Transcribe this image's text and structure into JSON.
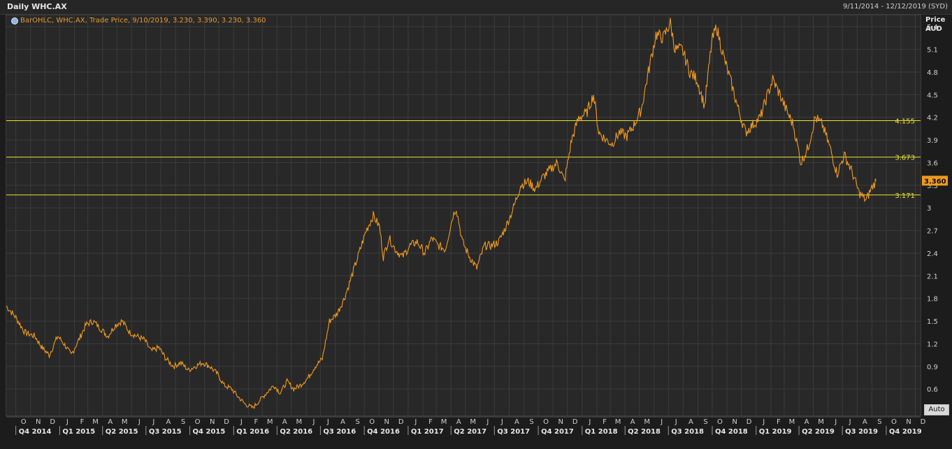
{
  "header": {
    "title": "Daily WHC.AX",
    "date_range": "9/11/2014 - 12/12/2019 (SYD)"
  },
  "legend": {
    "text": "BarOHLC, WHC.AX, Trade Price, 9/10/2019, 3.230, 3.390, 3.230, 3.360"
  },
  "axis_header": {
    "line1": "Price",
    "line2": "AUD"
  },
  "auto_button": "Auto",
  "colors": {
    "price_line": "#f29a1f",
    "level_line": "#e8e233",
    "last_price_bg": "#f29a1f",
    "grid": "#3b3b3b"
  },
  "chart_data": {
    "type": "line",
    "title": "Daily WHC.AX",
    "ylabel": "Price AUD",
    "ylim": [
      0.25,
      5.55
    ],
    "yticks": [
      0.6,
      0.9,
      1.2,
      1.5,
      1.8,
      2.1,
      2.4,
      2.7,
      3,
      3.3,
      3.6,
      3.9,
      4.2,
      4.5,
      4.8,
      5.1,
      5.4
    ],
    "ytick_labels": [
      "0.6",
      "0.9",
      "1.2",
      "1.5",
      "1.8",
      "2.1",
      "2.4",
      "2.7",
      "3",
      "3.3",
      "3.6",
      "3.9",
      "4.2",
      "4.5",
      "4.8",
      "5.1",
      "5.4"
    ],
    "month_labels": [
      "O",
      "N",
      "D",
      "J",
      "F",
      "M",
      "A",
      "M",
      "J",
      "J",
      "A",
      "S",
      "O",
      "N",
      "D",
      "J",
      "F",
      "M",
      "A",
      "M",
      "J",
      "J",
      "A",
      "S",
      "O",
      "N",
      "D",
      "J",
      "F",
      "M",
      "A",
      "M",
      "J",
      "J",
      "A",
      "S",
      "O",
      "N",
      "D",
      "J",
      "F",
      "M",
      "A",
      "M",
      "J",
      "J",
      "A",
      "S",
      "O",
      "N",
      "D",
      "J",
      "F",
      "M",
      "A",
      "M",
      "J",
      "J",
      "A",
      "S",
      "O",
      "N",
      "D"
    ],
    "quarter_labels": [
      "Q4 2014",
      "Q1 2015",
      "Q2 2015",
      "Q3 2015",
      "Q4 2015",
      "Q1 2016",
      "Q2 2016",
      "Q3 2016",
      "Q4 2016",
      "Q1 2017",
      "Q2 2017",
      "Q3 2017",
      "Q4 2017",
      "Q1 2018",
      "Q2 2018",
      "Q3 2018",
      "Q4 2018",
      "Q1 2019",
      "Q2 2019",
      "Q3 2019",
      "Q4 2019"
    ],
    "levels": [
      {
        "label": "4.155",
        "value": 4.155
      },
      {
        "label": "3.673",
        "value": 3.673
      },
      {
        "label": "3.171",
        "value": 3.171
      }
    ],
    "last_price": {
      "label": "3.360",
      "value": 3.36
    },
    "series": [
      {
        "x": [
          "2014-09-11",
          "2014-10-01",
          "2014-10-20",
          "2014-11-10",
          "2014-11-25",
          "2014-12-10",
          "2014-12-28",
          "2015-01-10",
          "2015-01-25",
          "2015-02-10",
          "2015-02-25",
          "2015-03-12",
          "2015-03-28",
          "2015-04-12",
          "2015-04-28",
          "2015-05-12",
          "2015-05-28",
          "2015-06-12",
          "2015-06-28",
          "2015-07-12",
          "2015-07-28",
          "2015-08-12",
          "2015-08-28",
          "2015-09-12",
          "2015-09-28",
          "2015-10-12",
          "2015-10-28",
          "2015-11-12",
          "2015-11-28",
          "2015-12-12",
          "2015-12-28",
          "2016-01-10",
          "2016-01-25",
          "2016-02-10",
          "2016-02-25",
          "2016-03-10",
          "2016-03-25",
          "2016-04-08",
          "2016-04-22",
          "2016-05-06",
          "2016-05-20",
          "2016-06-05",
          "2016-06-20",
          "2016-07-05",
          "2016-07-20",
          "2016-08-05",
          "2016-08-20",
          "2016-09-05",
          "2016-09-20",
          "2016-10-05",
          "2016-10-20",
          "2016-11-02",
          "2016-11-10",
          "2016-11-22",
          "2016-12-05",
          "2016-12-20",
          "2017-01-05",
          "2017-01-20",
          "2017-02-05",
          "2017-02-20",
          "2017-03-05",
          "2017-03-20",
          "2017-04-05",
          "2017-04-12",
          "2017-04-25",
          "2017-05-10",
          "2017-05-25",
          "2017-06-10",
          "2017-06-25",
          "2017-07-10",
          "2017-07-25",
          "2017-08-10",
          "2017-08-25",
          "2017-09-10",
          "2017-09-25",
          "2017-10-10",
          "2017-10-25",
          "2017-11-10",
          "2017-11-25",
          "2017-12-10",
          "2017-12-25",
          "2018-01-10",
          "2018-01-25",
          "2018-02-05",
          "2018-02-20",
          "2018-03-05",
          "2018-03-20",
          "2018-04-05",
          "2018-04-20",
          "2018-05-05",
          "2018-05-20",
          "2018-06-05",
          "2018-06-20",
          "2018-07-05",
          "2018-07-15",
          "2018-07-30",
          "2018-08-15",
          "2018-08-30",
          "2018-09-15",
          "2018-09-30",
          "2018-10-10",
          "2018-10-25",
          "2018-11-10",
          "2018-11-25",
          "2018-12-10",
          "2018-12-25",
          "2019-01-10",
          "2019-01-25",
          "2019-02-05",
          "2019-02-20",
          "2019-03-05",
          "2019-03-20",
          "2019-04-05",
          "2019-04-20",
          "2019-05-05",
          "2019-05-20",
          "2019-06-05",
          "2019-06-20",
          "2019-07-05",
          "2019-07-20",
          "2019-08-05",
          "2019-08-20",
          "2019-08-30",
          "2019-09-10"
        ],
        "y": [
          1.7,
          1.55,
          1.35,
          1.3,
          1.15,
          1.05,
          1.3,
          1.2,
          1.05,
          1.25,
          1.45,
          1.5,
          1.4,
          1.3,
          1.45,
          1.5,
          1.35,
          1.3,
          1.25,
          1.1,
          1.15,
          1.0,
          0.9,
          0.95,
          0.85,
          0.9,
          0.95,
          0.9,
          0.8,
          0.65,
          0.6,
          0.5,
          0.4,
          0.35,
          0.45,
          0.55,
          0.65,
          0.55,
          0.7,
          0.6,
          0.65,
          0.75,
          0.9,
          1.0,
          1.5,
          1.6,
          1.8,
          2.1,
          2.4,
          2.7,
          2.9,
          2.75,
          2.35,
          2.6,
          2.45,
          2.35,
          2.5,
          2.55,
          2.4,
          2.6,
          2.5,
          2.45,
          2.9,
          3.0,
          2.55,
          2.35,
          2.2,
          2.5,
          2.5,
          2.55,
          2.75,
          3.0,
          3.3,
          3.35,
          3.25,
          3.4,
          3.5,
          3.6,
          3.35,
          3.9,
          4.2,
          4.25,
          4.5,
          4.0,
          3.9,
          3.85,
          4.0,
          3.95,
          4.1,
          4.3,
          4.8,
          5.3,
          5.25,
          5.45,
          5.1,
          5.1,
          4.8,
          4.7,
          4.35,
          5.2,
          5.4,
          5.0,
          4.65,
          4.3,
          4.0,
          4.1,
          4.2,
          4.5,
          4.7,
          4.5,
          4.3,
          4.1,
          3.6,
          3.8,
          4.2,
          4.1,
          3.8,
          3.45,
          3.7,
          3.5,
          3.2,
          3.1,
          3.25,
          3.36
        ]
      }
    ]
  }
}
